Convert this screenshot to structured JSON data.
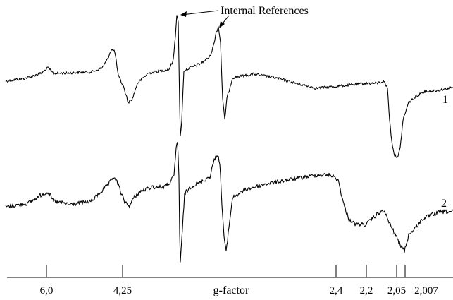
{
  "chart_data": {
    "type": "line",
    "title": "",
    "xlabel": "g-factor",
    "ylabel": "",
    "x_ticks": [
      "6,0",
      "4,25",
      "2,4",
      "2,2",
      "2,05",
      "2,007"
    ],
    "annotation": "Internal References",
    "grid": false,
    "legend": "none",
    "series": [
      {
        "name": "1",
        "features": [
          {
            "g": "6,0",
            "shape": "small bump"
          },
          {
            "g": "4,25",
            "shape": "derivative peak-trough"
          },
          {
            "g": "internal reference",
            "shape": "sharp derivative line"
          },
          {
            "g": "internal reference",
            "shape": "sharp derivative line"
          },
          {
            "g": "2,05",
            "shape": "broad derivative, deep trough"
          }
        ]
      },
      {
        "name": "2",
        "features": [
          {
            "g": "6,0",
            "shape": "small bump"
          },
          {
            "g": "4,25",
            "shape": "derivative peak-trough"
          },
          {
            "g": "internal reference",
            "shape": "sharp derivative line"
          },
          {
            "g": "internal reference",
            "shape": "sharp derivative line"
          },
          {
            "g": "2,4",
            "shape": "broad hump"
          },
          {
            "g": "2,007",
            "shape": "noisy derivative"
          }
        ]
      }
    ]
  }
}
